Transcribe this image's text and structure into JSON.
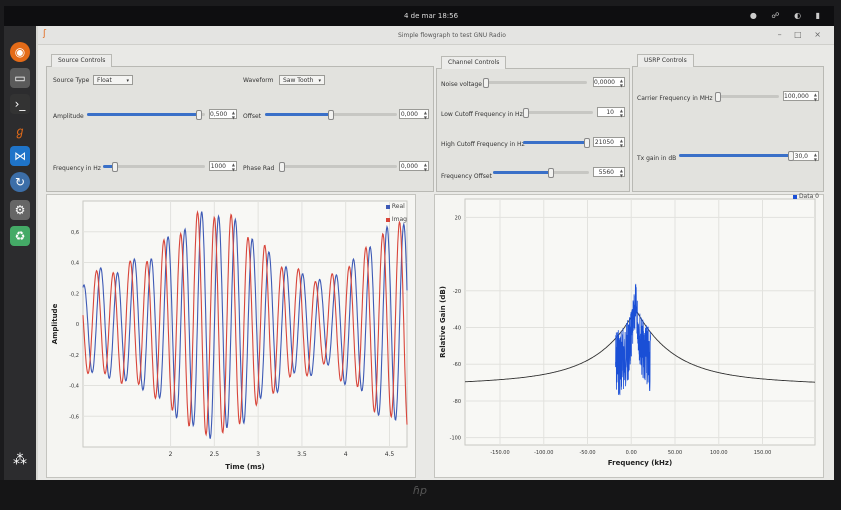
{
  "topbar": {
    "clock": "4 de mar  18:56"
  },
  "window": {
    "title": "Simple flowgraph to test GNU Radio"
  },
  "source_controls": {
    "tab": "Source Controls",
    "source_type_label": "Source Type",
    "source_type_value": "Float",
    "waveform_label": "Waveform",
    "waveform_value": "Saw Tooth",
    "amplitude_label": "Amplitude",
    "amplitude_value": "0,500",
    "amplitude_level": 0.95,
    "offset_label": "Offset",
    "offset_value": "0,000",
    "offset_level": 0.5,
    "frequency_label": "Frequency in Hz",
    "frequency_value": "1000",
    "frequency_level": 0.12,
    "phase_label": "Phase Rad",
    "phase_value": "0,000",
    "phase_level": 0.0
  },
  "channel_controls": {
    "tab": "Channel Controls",
    "noise_label": "Noise voltage",
    "noise_value": "0,0000",
    "noise_level": 0.0,
    "low_cutoff_label": "Low Cutoff Frequency in Hz",
    "low_cutoff_value": "10",
    "low_cutoff_level": 0.0,
    "high_cutoff_label": "High Cutoff Frequency in Hz",
    "high_cutoff_value": "21050",
    "high_cutoff_level": 0.97,
    "freq_offset_label": "Frequency Offset",
    "freq_offset_value": "5560",
    "freq_offset_level": 0.6
  },
  "usrp_controls": {
    "tab": "USRP Controls",
    "carrier_label": "Carrier Frequency in MHz",
    "carrier_value": "100,000",
    "carrier_level": 0.0,
    "tx_gain_label": "Tx gain in dB",
    "tx_gain_value": "30,0",
    "tx_gain_level": 1.0
  },
  "chart_data": [
    {
      "type": "line",
      "xlabel": "Time (ms)",
      "ylabel": "Amplitude",
      "xlim": [
        1.0,
        4.7
      ],
      "ylim": [
        -0.8,
        0.8
      ],
      "xticks": [
        "2",
        "2.5",
        "3",
        "3.5",
        "4",
        "4.5"
      ],
      "yticks": [
        "0,6",
        "0,4",
        "0,2",
        "0",
        "-0,2",
        "-0,4",
        "-0,6"
      ],
      "series": [
        {
          "name": "Real",
          "color": "#3e5ab5",
          "phase": 0.0
        },
        {
          "name": "Imag",
          "color": "#d8453a",
          "phase": 1.57
        }
      ],
      "legend_position": "top-right"
    },
    {
      "type": "line",
      "xlabel": "Frequency (kHz)",
      "ylabel": "Relative Gain (dB)",
      "xlim": [
        -190,
        210
      ],
      "ylim": [
        -104,
        30
      ],
      "xticks": [
        "-150.00",
        "-100.00",
        "-50.00",
        "0.00",
        "50.00",
        "100.00",
        "150.00"
      ],
      "yticks": [
        "20",
        "-20",
        "-40",
        "-60",
        "-80",
        "-100"
      ],
      "series": [
        {
          "name": "Data 0",
          "color": "#1a4fd6"
        }
      ],
      "legend_position": "top-right"
    }
  ]
}
